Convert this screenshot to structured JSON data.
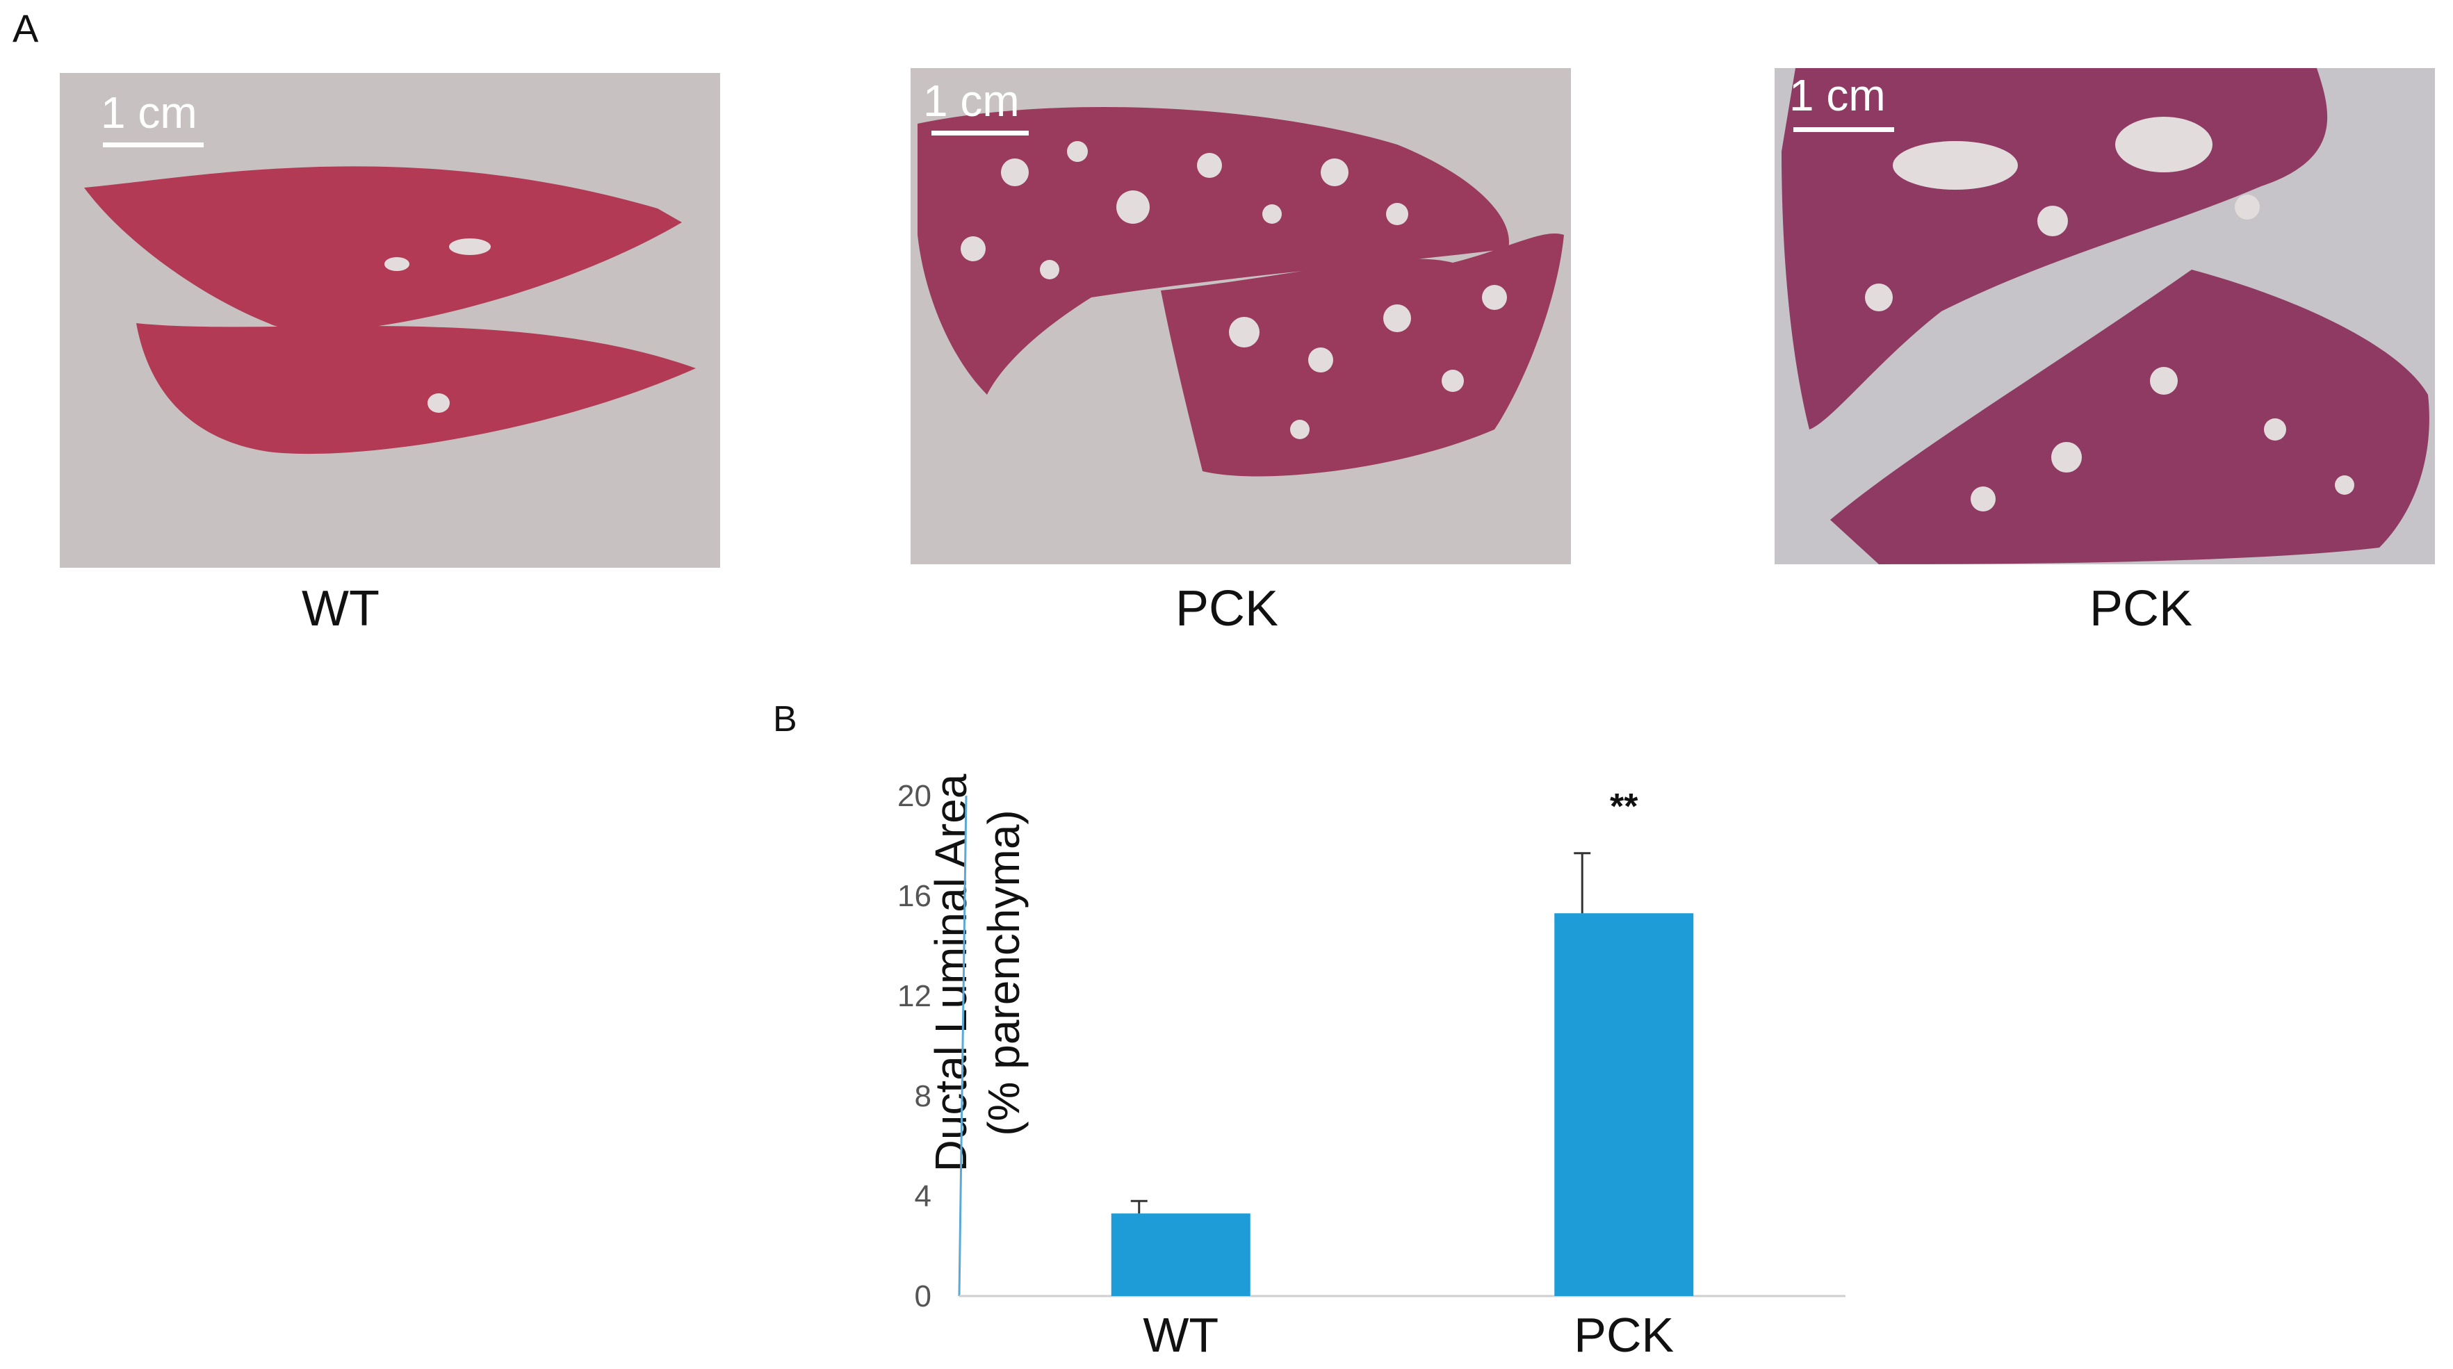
{
  "panel_a": {
    "letter": "A",
    "images": [
      {
        "label": "WT",
        "scale_text": "1 cm",
        "tissue": "normal liver sections"
      },
      {
        "label": "PCK",
        "scale_text": "1 cm",
        "tissue": "cystic liver sections"
      },
      {
        "label": "PCK",
        "scale_text": "1 cm",
        "tissue": "cystic liver sections"
      }
    ],
    "colors": {
      "tissue": "#b23a55",
      "cystic_tissue": "#9a3a5c",
      "slide": "#c9c2c2",
      "lumen": "#e2dcdc"
    }
  },
  "panel_b": {
    "letter": "B",
    "ylabel_line1": "Ductal Luminal Area",
    "ylabel_line2": "(% parenchyma)"
  },
  "chart_data": {
    "type": "bar",
    "categories": [
      "WT",
      "PCK"
    ],
    "values": [
      3.3,
      15.3
    ],
    "errors": [
      0.5,
      2.4
    ],
    "annotations": [
      "",
      "**"
    ],
    "ylim": [
      0,
      20
    ],
    "yticks": [
      0,
      4,
      8,
      12,
      16,
      20
    ],
    "ylabel": "Ductal Luminal Area (% parenchyma)",
    "bar_color": "#1e9cd8",
    "axis_color": "#5aa9d6"
  }
}
